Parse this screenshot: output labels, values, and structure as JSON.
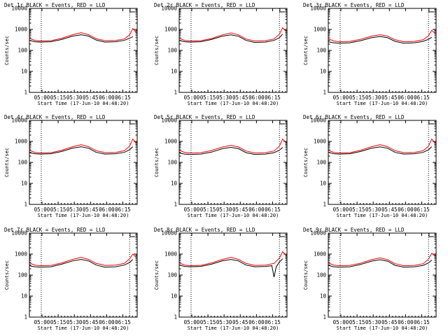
{
  "colors": {
    "events": "#000000",
    "lld": "#ff0000",
    "axes": "#000000",
    "background": "#ffffff"
  },
  "axis_common": {
    "xlabel": "Start Time (17-Jun-10 04:48:20)",
    "ylabel": "Counts/sec",
    "x_ticks": [
      "05:00",
      "05:15",
      "05:30",
      "05:45",
      "06:00",
      "06:15"
    ],
    "y_ticks": [
      "1",
      "10",
      "100",
      "1000",
      "10000"
    ]
  },
  "chart_data": [
    {
      "type": "line",
      "title": "Det 1r BLACK = Events, RED = LLD",
      "xlabel": "Start Time (17-Jun-10 04:48:20)",
      "ylabel": "Counts/sec",
      "x_ticks": [
        "05:00",
        "05:15",
        "05:30",
        "05:45",
        "06:00",
        "06:15"
      ],
      "y_ticks": [
        "1",
        "10",
        "100",
        "1000",
        "10000"
      ],
      "y_scale": "log",
      "ylim": [
        1,
        10000
      ],
      "xlim_min": [
        0,
        100
      ],
      "x_markers_min": [
        11,
        93
      ],
      "outage_marker_min": 96,
      "series": [
        {
          "name": "BLACK = Events",
          "x": [
            0,
            5,
            10,
            20,
            30,
            40,
            48,
            55,
            62,
            70,
            80,
            88,
            93,
            96
          ],
          "y": [
            300,
            260,
            250,
            260,
            330,
            480,
            560,
            480,
            310,
            250,
            260,
            300,
            380,
            450
          ]
        },
        {
          "name": "RED = LLD",
          "x": [
            0,
            5,
            10,
            20,
            30,
            40,
            48,
            55,
            62,
            70,
            80,
            88,
            93,
            96,
            99
          ],
          "y": [
            380,
            300,
            280,
            290,
            380,
            560,
            700,
            560,
            360,
            290,
            300,
            350,
            550,
            1100,
            700
          ]
        }
      ]
    },
    {
      "type": "line",
      "title": "Det 2r BLACK = Events, RED = LLD",
      "xlabel": "Start Time (17-Jun-10 04:48:20)",
      "ylabel": "Counts/sec",
      "x_ticks": [
        "05:00",
        "05:15",
        "05:30",
        "05:45",
        "06:00",
        "06:15"
      ],
      "y_ticks": [
        "1",
        "10",
        "100",
        "1000",
        "10000"
      ],
      "y_scale": "log",
      "ylim": [
        1,
        10000
      ],
      "xlim_min": [
        0,
        100
      ],
      "x_markers_min": [
        11,
        93
      ],
      "outage_marker_min": 96,
      "series": [
        {
          "name": "BLACK = Events",
          "x": [
            0,
            5,
            10,
            20,
            30,
            40,
            48,
            55,
            62,
            70,
            80,
            88,
            93,
            96
          ],
          "y": [
            300,
            260,
            250,
            260,
            330,
            480,
            550,
            470,
            300,
            240,
            250,
            300,
            400,
            600
          ]
        },
        {
          "name": "RED = LLD",
          "x": [
            0,
            5,
            10,
            20,
            30,
            40,
            48,
            55,
            62,
            70,
            80,
            88,
            93,
            96,
            99
          ],
          "y": [
            380,
            300,
            280,
            290,
            370,
            550,
            680,
            550,
            350,
            280,
            290,
            350,
            600,
            1200,
            800
          ]
        }
      ]
    },
    {
      "type": "line",
      "title": "Det 3r BLACK = Events, RED = LLD",
      "xlabel": "Start Time (17-Jun-10 04:48:20)",
      "ylabel": "Counts/sec",
      "x_ticks": [
        "05:00",
        "05:15",
        "05:30",
        "05:45",
        "06:00",
        "06:15"
      ],
      "y_ticks": [
        "1",
        "10",
        "100",
        "1000",
        "10000"
      ],
      "y_scale": "log",
      "ylim": [
        1,
        10000
      ],
      "xlim_min": [
        0,
        100
      ],
      "x_markers_min": [
        11,
        93
      ],
      "outage_marker_min": 96,
      "series": [
        {
          "name": "BLACK = Events",
          "x": [
            0,
            5,
            10,
            20,
            30,
            40,
            48,
            55,
            62,
            70,
            80,
            88,
            93,
            96
          ],
          "y": [
            260,
            230,
            220,
            230,
            290,
            400,
            460,
            400,
            270,
            220,
            230,
            270,
            340,
            420
          ]
        },
        {
          "name": "RED = LLD",
          "x": [
            0,
            5,
            10,
            20,
            30,
            40,
            48,
            55,
            62,
            70,
            80,
            88,
            93,
            96,
            99
          ],
          "y": [
            360,
            280,
            260,
            270,
            340,
            480,
            560,
            480,
            320,
            260,
            270,
            320,
            500,
            900,
            650
          ]
        }
      ]
    },
    {
      "type": "line",
      "title": "Det 4r BLACK = Events, RED = LLD",
      "xlabel": "Start Time (17-Jun-10 04:48:20)",
      "ylabel": "Counts/sec",
      "x_ticks": [
        "05:00",
        "05:15",
        "05:30",
        "05:45",
        "06:00",
        "06:15"
      ],
      "y_ticks": [
        "1",
        "10",
        "100",
        "1000",
        "10000"
      ],
      "y_scale": "log",
      "ylim": [
        1,
        10000
      ],
      "xlim_min": [
        0,
        100
      ],
      "x_markers_min": [
        11,
        93
      ],
      "outage_marker_min": 96,
      "series": [
        {
          "name": "BLACK = Events",
          "x": [
            0,
            5,
            10,
            20,
            30,
            40,
            48,
            55,
            62,
            70,
            80,
            88,
            93,
            96
          ],
          "y": [
            290,
            260,
            250,
            260,
            330,
            480,
            560,
            470,
            300,
            250,
            260,
            300,
            400,
            560
          ]
        },
        {
          "name": "RED = LLD",
          "x": [
            0,
            5,
            10,
            20,
            30,
            40,
            48,
            55,
            62,
            70,
            80,
            88,
            93,
            96,
            99
          ],
          "y": [
            380,
            300,
            280,
            290,
            380,
            560,
            700,
            560,
            360,
            290,
            300,
            360,
            600,
            1300,
            800
          ]
        }
      ]
    },
    {
      "type": "line",
      "title": "Det 5r BLACK = Events, RED = LLD",
      "xlabel": "Start Time (17-Jun-10 04:48:20)",
      "ylabel": "Counts/sec",
      "x_ticks": [
        "05:00",
        "05:15",
        "05:30",
        "05:45",
        "06:00",
        "06:15"
      ],
      "y_ticks": [
        "1",
        "10",
        "100",
        "1000",
        "10000"
      ],
      "y_scale": "log",
      "ylim": [
        1,
        10000
      ],
      "xlim_min": [
        0,
        100
      ],
      "x_markers_min": [
        11,
        93
      ],
      "outage_marker_min": 96,
      "series": [
        {
          "name": "BLACK = Events",
          "x": [
            0,
            5,
            10,
            20,
            30,
            40,
            48,
            55,
            62,
            70,
            80,
            88,
            93,
            96
          ],
          "y": [
            280,
            250,
            240,
            250,
            310,
            450,
            520,
            450,
            290,
            240,
            250,
            290,
            380,
            520
          ]
        },
        {
          "name": "RED = LLD",
          "x": [
            0,
            5,
            10,
            20,
            30,
            40,
            48,
            55,
            62,
            70,
            80,
            88,
            93,
            96,
            99
          ],
          "y": [
            380,
            300,
            280,
            290,
            370,
            540,
            650,
            540,
            350,
            280,
            290,
            350,
            600,
            1300,
            850
          ]
        }
      ]
    },
    {
      "type": "line",
      "title": "Det 6r BLACK = Events, RED = LLD",
      "xlabel": "Start Time (17-Jun-10 04:48:20)",
      "ylabel": "Counts/sec",
      "x_ticks": [
        "05:00",
        "05:15",
        "05:30",
        "05:45",
        "06:00",
        "06:15"
      ],
      "y_ticks": [
        "1",
        "10",
        "100",
        "1000",
        "10000"
      ],
      "y_scale": "log",
      "ylim": [
        1,
        10000
      ],
      "xlim_min": [
        0,
        100
      ],
      "x_markers_min": [
        11,
        93
      ],
      "outage_marker_min": 96,
      "series": [
        {
          "name": "BLACK = Events",
          "x": [
            0,
            5,
            10,
            20,
            30,
            40,
            48,
            55,
            62,
            70,
            80,
            88,
            93,
            96
          ],
          "y": [
            300,
            260,
            250,
            260,
            330,
            470,
            550,
            470,
            300,
            250,
            260,
            300,
            400,
            560
          ]
        },
        {
          "name": "RED = LLD",
          "x": [
            0,
            5,
            10,
            20,
            30,
            40,
            48,
            55,
            62,
            70,
            80,
            88,
            93,
            96,
            99
          ],
          "y": [
            380,
            300,
            280,
            290,
            380,
            560,
            700,
            560,
            360,
            290,
            300,
            360,
            600,
            1300,
            800
          ]
        }
      ]
    },
    {
      "type": "line",
      "title": "Det 7r BLACK = Events, RED = LLD",
      "xlabel": "Start Time (17-Jun-10 04:48:20)",
      "ylabel": "Counts/sec",
      "x_ticks": [
        "05:00",
        "05:15",
        "05:30",
        "05:45",
        "06:00",
        "06:15"
      ],
      "y_ticks": [
        "1",
        "10",
        "100",
        "1000",
        "10000"
      ],
      "y_scale": "log",
      "ylim": [
        1,
        10000
      ],
      "xlim_min": [
        0,
        100
      ],
      "x_markers_min": [
        11,
        93
      ],
      "outage_marker_min": 96,
      "series": [
        {
          "name": "BLACK = Events",
          "x": [
            0,
            5,
            10,
            20,
            30,
            40,
            48,
            55,
            62,
            70,
            80,
            88,
            93,
            96
          ],
          "y": [
            280,
            250,
            240,
            250,
            330,
            470,
            560,
            470,
            300,
            240,
            250,
            300,
            400,
            560
          ]
        },
        {
          "name": "RED = LLD",
          "x": [
            0,
            5,
            10,
            20,
            30,
            40,
            48,
            55,
            62,
            70,
            80,
            88,
            93,
            96,
            99
          ],
          "y": [
            380,
            300,
            280,
            290,
            380,
            560,
            700,
            560,
            360,
            290,
            300,
            360,
            600,
            1000,
            700
          ]
        }
      ]
    },
    {
      "type": "line",
      "title": "Det 8r BLACK = Events, RED = LLD",
      "xlabel": "Start Time (17-Jun-10 04:48:20)",
      "ylabel": "Counts/sec",
      "x_ticks": [
        "05:00",
        "05:15",
        "05:30",
        "05:45",
        "06:00",
        "06:15"
      ],
      "y_ticks": [
        "1",
        "10",
        "100",
        "1000",
        "10000"
      ],
      "y_scale": "log",
      "ylim": [
        1,
        10000
      ],
      "xlim_min": [
        0,
        100
      ],
      "x_markers_min": [
        11,
        93
      ],
      "outage_marker_min": 96,
      "series": [
        {
          "name": "BLACK = Events",
          "x": [
            0,
            5,
            10,
            20,
            30,
            40,
            48,
            55,
            62,
            70,
            80,
            86,
            88,
            90,
            93,
            96
          ],
          "y": [
            300,
            260,
            250,
            260,
            330,
            480,
            560,
            470,
            300,
            250,
            260,
            280,
            80,
            250,
            420,
            600
          ]
        },
        {
          "name": "RED = LLD",
          "x": [
            0,
            5,
            10,
            20,
            30,
            40,
            48,
            55,
            62,
            70,
            80,
            88,
            93,
            96,
            99
          ],
          "y": [
            380,
            300,
            280,
            290,
            380,
            560,
            700,
            560,
            360,
            290,
            300,
            360,
            650,
            1300,
            900
          ]
        }
      ]
    },
    {
      "type": "line",
      "title": "Det 9r BLACK = Events, RED = LLD",
      "xlabel": "Start Time (17-Jun-10 04:48:20)",
      "ylabel": "Counts/sec",
      "x_ticks": [
        "05:00",
        "05:15",
        "05:30",
        "05:45",
        "06:00",
        "06:15"
      ],
      "y_ticks": [
        "1",
        "10",
        "100",
        "1000",
        "10000"
      ],
      "y_scale": "log",
      "ylim": [
        1,
        10000
      ],
      "xlim_min": [
        0,
        100
      ],
      "x_markers_min": [
        11,
        93
      ],
      "outage_marker_min": 96,
      "series": [
        {
          "name": "BLACK = Events",
          "x": [
            0,
            5,
            10,
            20,
            30,
            40,
            48,
            55,
            62,
            70,
            80,
            88,
            93,
            96
          ],
          "y": [
            290,
            250,
            240,
            250,
            320,
            460,
            540,
            460,
            290,
            240,
            250,
            290,
            380,
            520
          ]
        },
        {
          "name": "RED = LLD",
          "x": [
            0,
            5,
            10,
            20,
            30,
            40,
            48,
            55,
            62,
            70,
            80,
            88,
            93,
            96,
            99
          ],
          "y": [
            380,
            300,
            280,
            290,
            370,
            540,
            660,
            540,
            350,
            280,
            290,
            350,
            580,
            1100,
            800
          ]
        }
      ]
    }
  ]
}
